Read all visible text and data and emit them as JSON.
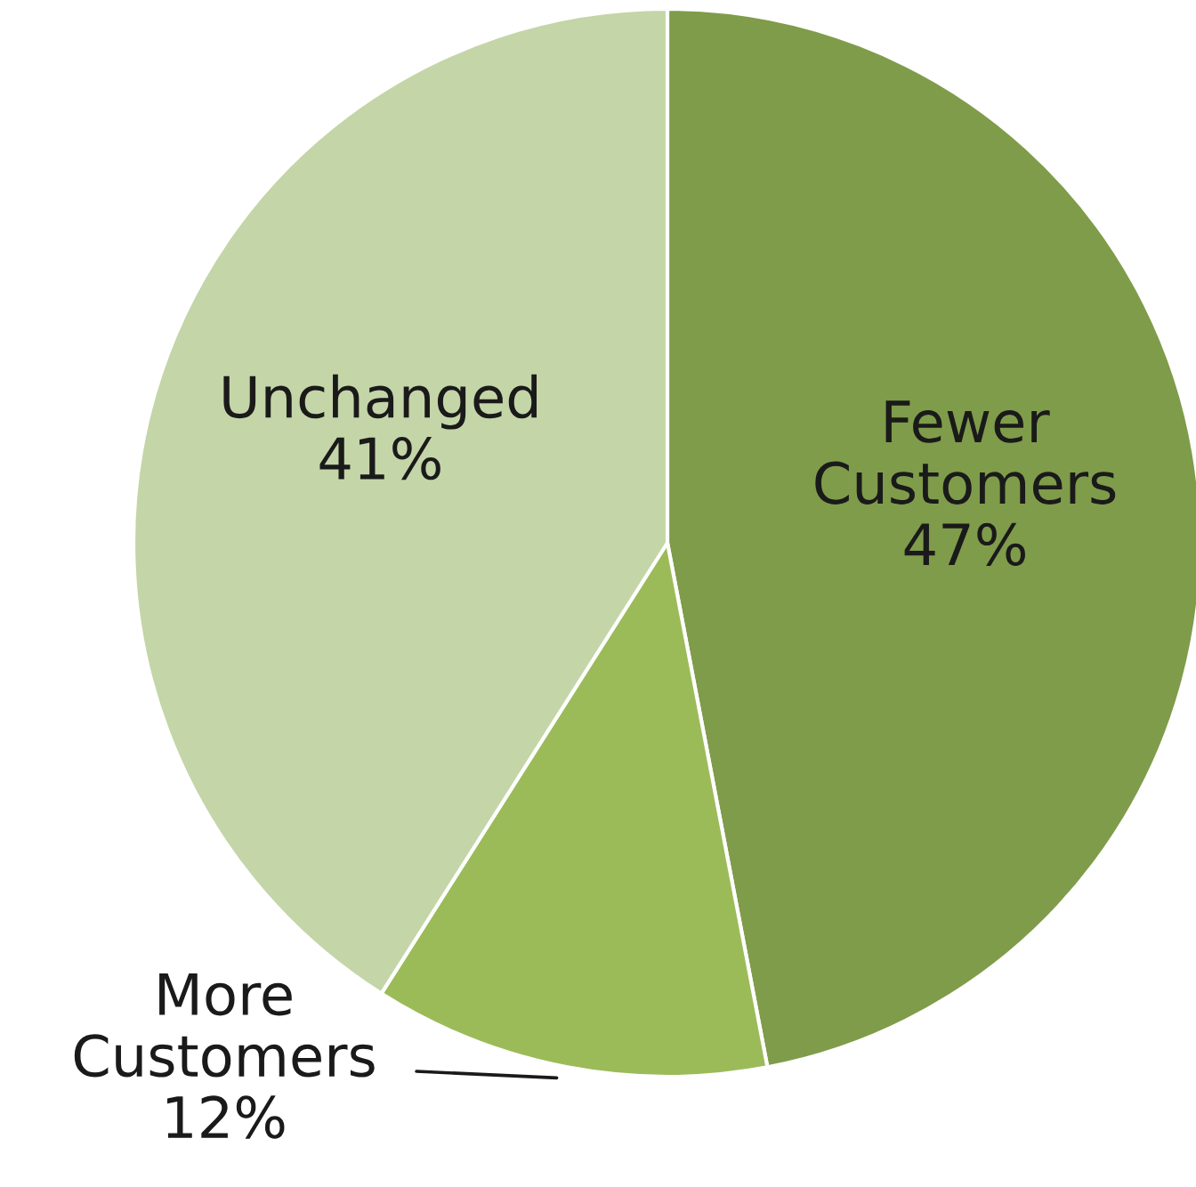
{
  "chart_data": {
    "type": "pie",
    "categories": [
      "Fewer Customers",
      "More Customers",
      "Unchanged"
    ],
    "values": [
      47,
      12,
      41
    ],
    "value_labels": [
      "47%",
      "12%",
      "41%"
    ],
    "colors": [
      "#7f9c4a",
      "#9bbb59",
      "#c4d5a8"
    ],
    "legend": false
  }
}
